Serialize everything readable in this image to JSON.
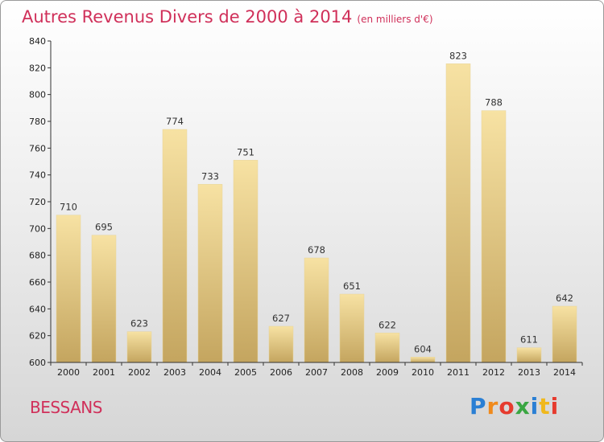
{
  "title": "Autres Revenus Divers de 2000 à 2014",
  "unit": "(en milliers d'€)",
  "commune": "BESSANS",
  "logo": {
    "letters": [
      "P",
      "r",
      "o",
      "x",
      "i",
      "t",
      "i"
    ],
    "colors": [
      "#2a7fd4",
      "#f08a1c",
      "#e63b2e",
      "#3aa642",
      "#2a7fd4",
      "#f0b81c",
      "#e63b2e"
    ]
  },
  "colors": {
    "title": "#d0305a",
    "bar_light": "#f5dfa0",
    "bar_dark": "#c7a862"
  },
  "chart_data": {
    "type": "bar",
    "title": "Autres Revenus Divers de 2000 à 2014",
    "categories": [
      "2000",
      "2001",
      "2002",
      "2003",
      "2004",
      "2005",
      "2006",
      "2007",
      "2008",
      "2009",
      "2010",
      "2011",
      "2012",
      "2013",
      "2014"
    ],
    "values": [
      710,
      695,
      623,
      774,
      733,
      751,
      627,
      678,
      651,
      622,
      604,
      823,
      788,
      611,
      642
    ],
    "ylim": [
      600,
      840
    ],
    "yticks": [
      600,
      620,
      640,
      660,
      680,
      700,
      720,
      740,
      760,
      780,
      800,
      820,
      840
    ],
    "grid": false,
    "xlabel": "",
    "ylabel": ""
  }
}
